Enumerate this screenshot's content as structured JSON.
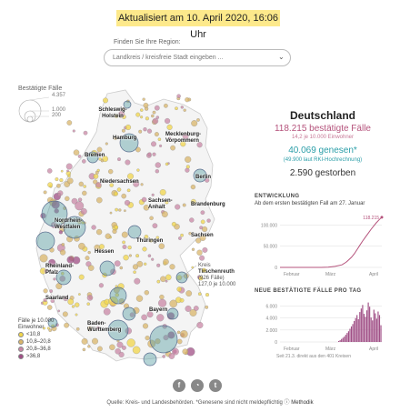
{
  "banner": "Aktualisiert am 10. April 2020, 16:06 Uhr",
  "region": {
    "label": "Finden Sie Ihre Region:",
    "placeholder": "Landkreis / kreisfreie Stadt eingeben ..."
  },
  "size_legend": {
    "title": "Bestätigte Fälle",
    "values": [
      "4.357",
      "1.000",
      "200"
    ]
  },
  "states": [
    "Schleswig-Holstein",
    "Hamburg",
    "Mecklenburg-Vorpommern",
    "Bremen",
    "Niedersachsen",
    "Berlin",
    "Brandenburg",
    "Sachsen-Anhalt",
    "Nordrhein-Westfalen",
    "Hessen",
    "Thüringen",
    "Sachsen",
    "Rheinland-Pfalz",
    "Saarland",
    "Bayern",
    "Baden-Württemberg"
  ],
  "tooltip": {
    "line1": "Kreis",
    "line2": "Tirschenreuth",
    "line3": "(926 Fälle)",
    "line4": "127,0 je 10.000"
  },
  "incidence_legend": {
    "title1": "Fälle je 10.000",
    "title2": "Einwohner",
    "items": [
      {
        "label": "<10,8",
        "color": "#f1d54a"
      },
      {
        "label": "10,8–20,8",
        "color": "#d9b56a"
      },
      {
        "label": "20,8–36,8",
        "color": "#c987a6"
      },
      {
        "label": ">36,8",
        "color": "#a04f86"
      }
    ]
  },
  "stats": {
    "country": "Deutschland",
    "cases": "118.215 bestätigte Fälle",
    "cases_sub": "14,2 je 10.000 Einwohner",
    "recovered": "40.069 genesen*",
    "recovered_sub": "(49.900 laut RKI-Hochrechnung)",
    "deaths": "2.590 gestorben"
  },
  "chart_data": [
    {
      "type": "line",
      "title": "ENTWICKLUNG",
      "subtitle": "Ab dem ersten bestätigten Fall am 27. Januar",
      "x_ticks": [
        "Februar",
        "März",
        "April"
      ],
      "y_ticks": [
        "100.000",
        "50.000",
        "0"
      ],
      "ylim": [
        0,
        120000
      ],
      "last_label": "118.215",
      "x": [
        0,
        10,
        20,
        30,
        35,
        40,
        45,
        48,
        50,
        52,
        54,
        56,
        58,
        60,
        62,
        64,
        66,
        68,
        70,
        72,
        74
      ],
      "values": [
        1,
        10,
        16,
        100,
        700,
        2400,
        6000,
        12000,
        18000,
        24000,
        32000,
        42000,
        52000,
        62000,
        71000,
        80000,
        89000,
        97000,
        105000,
        112000,
        118215
      ]
    },
    {
      "type": "bar",
      "title": "NEUE BESTÄTIGTE FÄLLE PRO TAG",
      "x_ticks": [
        "Februar",
        "März",
        "April"
      ],
      "y_ticks": [
        "6.000",
        "4.000",
        "2.000",
        "0"
      ],
      "ylim": [
        0,
        7000
      ],
      "note": "Seit 21.3. direkt aus den 401 Kreisen",
      "values": [
        150,
        300,
        500,
        700,
        900,
        1200,
        1500,
        1800,
        2200,
        2600,
        3000,
        3500,
        4000,
        4500,
        3800,
        5000,
        5600,
        6200,
        4700,
        4200,
        5300,
        6600,
        5900,
        4100,
        3600,
        5400,
        4800,
        3900,
        5100,
        4500,
        2800
      ]
    }
  ],
  "footer": "Quelle: Kreis- und Landesbehörden. *Genesene sind nicht meldepflichtig",
  "footer_link": "Methodik",
  "colors": {
    "banner": "#fde98b",
    "cases": "#b5537c",
    "recovered": "#2b9ea8"
  },
  "social_icons": [
    "facebook-icon",
    "whatsapp-icon",
    "twitter-icon"
  ]
}
